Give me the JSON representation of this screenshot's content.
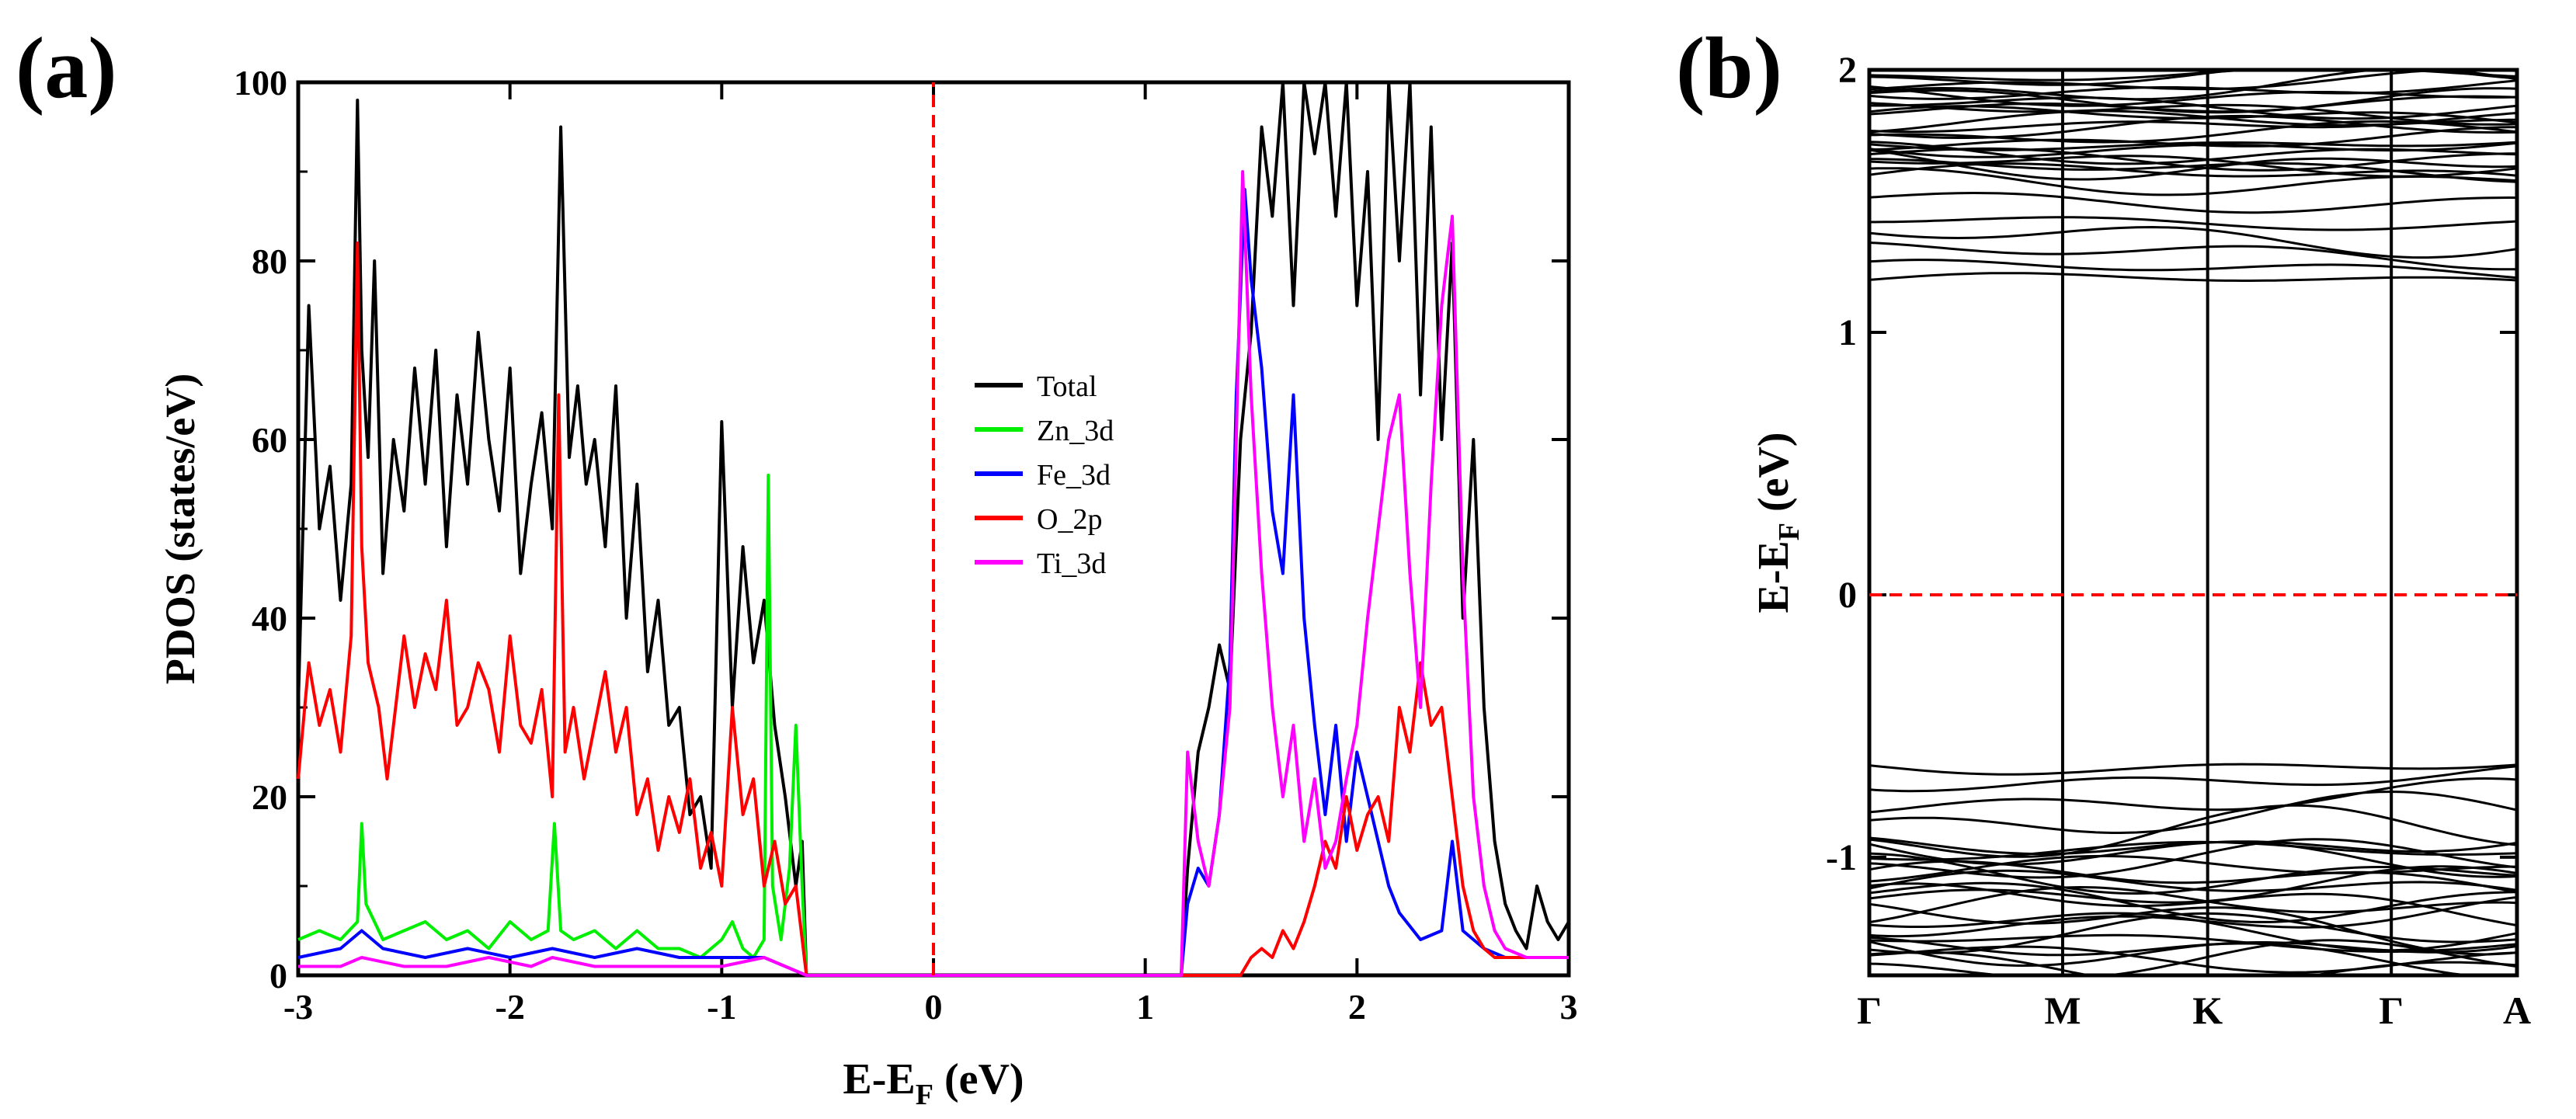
{
  "chart_data": [
    {
      "panel_label": "(a)",
      "type": "line",
      "xlabel_main": "E-E",
      "xlabel_sub": "F",
      "xlabel_unit": " (eV)",
      "ylabel": "PDOS (states/eV)",
      "xlim": [
        -3,
        3
      ],
      "ylim": [
        0,
        100
      ],
      "xticks": [
        -3,
        -2,
        -1,
        0,
        1,
        2,
        3
      ],
      "yticks": [
        0,
        20,
        40,
        60,
        80,
        100
      ],
      "fermi_level": 0,
      "legend_position": "center",
      "series": [
        {
          "name": "Total",
          "color": "#000000",
          "x": [
            -3.0,
            -2.95,
            -2.9,
            -2.85,
            -2.8,
            -2.75,
            -2.72,
            -2.7,
            -2.67,
            -2.64,
            -2.6,
            -2.55,
            -2.5,
            -2.45,
            -2.4,
            -2.35,
            -2.3,
            -2.25,
            -2.2,
            -2.15,
            -2.1,
            -2.05,
            -2.0,
            -1.95,
            -1.9,
            -1.85,
            -1.8,
            -1.76,
            -1.72,
            -1.68,
            -1.64,
            -1.6,
            -1.55,
            -1.5,
            -1.45,
            -1.4,
            -1.35,
            -1.3,
            -1.25,
            -1.2,
            -1.15,
            -1.1,
            -1.05,
            -1.0,
            -0.95,
            -0.9,
            -0.85,
            -0.8,
            -0.75,
            -0.7,
            -0.65,
            -0.62,
            -0.6,
            1.17,
            1.2,
            1.25,
            1.3,
            1.35,
            1.4,
            1.45,
            1.5,
            1.55,
            1.6,
            1.65,
            1.7,
            1.75,
            1.8,
            1.85,
            1.9,
            1.95,
            2.0,
            2.05,
            2.1,
            2.15,
            2.2,
            2.25,
            2.3,
            2.35,
            2.4,
            2.45,
            2.5,
            2.55,
            2.6,
            2.65,
            2.7,
            2.75,
            2.8,
            2.85,
            2.9,
            2.95,
            3.0
          ],
          "y": [
            30,
            75,
            50,
            57,
            42,
            55,
            98,
            70,
            58,
            80,
            45,
            60,
            52,
            68,
            55,
            70,
            48,
            65,
            55,
            72,
            60,
            52,
            68,
            45,
            55,
            63,
            50,
            95,
            58,
            66,
            55,
            60,
            48,
            66,
            40,
            55,
            34,
            42,
            28,
            30,
            18,
            20,
            12,
            62,
            30,
            48,
            35,
            42,
            28,
            20,
            10,
            15,
            0,
            0,
            12,
            25,
            30,
            37,
            32,
            60,
            72,
            95,
            85,
            100,
            75,
            100,
            92,
            100,
            85,
            100,
            75,
            90,
            60,
            100,
            80,
            100,
            65,
            95,
            60,
            82,
            40,
            60,
            30,
            15,
            8,
            5,
            3,
            10,
            6,
            4,
            6
          ]
        },
        {
          "name": "Zn_3d",
          "color": "#00ee00",
          "x": [
            -3.0,
            -2.9,
            -2.8,
            -2.72,
            -2.7,
            -2.68,
            -2.6,
            -2.5,
            -2.4,
            -2.3,
            -2.2,
            -2.1,
            -2.0,
            -1.9,
            -1.82,
            -1.79,
            -1.76,
            -1.7,
            -1.6,
            -1.5,
            -1.4,
            -1.3,
            -1.2,
            -1.1,
            -1.0,
            -0.95,
            -0.9,
            -0.85,
            -0.8,
            -0.78,
            -0.76,
            -0.72,
            -0.68,
            -0.65,
            -0.62,
            -0.6
          ],
          "y": [
            4,
            5,
            4,
            6,
            17,
            8,
            4,
            5,
            6,
            4,
            5,
            3,
            6,
            4,
            5,
            17,
            5,
            4,
            5,
            3,
            5,
            3,
            3,
            2,
            4,
            6,
            3,
            2,
            4,
            56,
            10,
            4,
            12,
            28,
            10,
            0
          ]
        },
        {
          "name": "Fe_3d",
          "color": "#0000ff",
          "x": [
            -3.0,
            -2.8,
            -2.7,
            -2.6,
            -2.4,
            -2.2,
            -2.0,
            -1.8,
            -1.6,
            -1.4,
            -1.2,
            -1.0,
            -0.8,
            -0.6,
            1.17,
            1.2,
            1.25,
            1.3,
            1.35,
            1.4,
            1.43,
            1.47,
            1.5,
            1.55,
            1.6,
            1.65,
            1.7,
            1.75,
            1.8,
            1.85,
            1.9,
            1.95,
            2.0,
            2.05,
            2.1,
            2.15,
            2.2,
            2.3,
            2.4,
            2.45,
            2.5,
            2.6,
            2.7,
            2.8,
            2.9,
            3.0
          ],
          "y": [
            2,
            3,
            5,
            3,
            2,
            3,
            2,
            3,
            2,
            3,
            2,
            2,
            2,
            0,
            0,
            8,
            12,
            10,
            18,
            35,
            65,
            88,
            78,
            68,
            52,
            45,
            65,
            40,
            28,
            18,
            28,
            15,
            25,
            20,
            15,
            10,
            7,
            4,
            5,
            15,
            5,
            3,
            2,
            2,
            2,
            2
          ]
        },
        {
          "name": "O_2p",
          "color": "#ff0000",
          "x": [
            -3.0,
            -2.95,
            -2.9,
            -2.85,
            -2.8,
            -2.75,
            -2.72,
            -2.7,
            -2.67,
            -2.62,
            -2.58,
            -2.5,
            -2.45,
            -2.4,
            -2.35,
            -2.3,
            -2.25,
            -2.2,
            -2.15,
            -2.1,
            -2.05,
            -2.0,
            -1.95,
            -1.9,
            -1.85,
            -1.8,
            -1.77,
            -1.74,
            -1.7,
            -1.65,
            -1.6,
            -1.55,
            -1.5,
            -1.45,
            -1.4,
            -1.35,
            -1.3,
            -1.25,
            -1.2,
            -1.15,
            -1.1,
            -1.05,
            -1.0,
            -0.95,
            -0.9,
            -0.85,
            -0.8,
            -0.75,
            -0.7,
            -0.65,
            -0.6,
            1.45,
            1.5,
            1.55,
            1.6,
            1.65,
            1.7,
            1.75,
            1.8,
            1.85,
            1.9,
            1.95,
            2.0,
            2.05,
            2.1,
            2.15,
            2.2,
            2.25,
            2.3,
            2.35,
            2.4,
            2.45,
            2.5,
            2.55,
            2.6,
            2.65,
            2.7,
            2.8,
            2.9,
            3.0
          ],
          "y": [
            22,
            35,
            28,
            32,
            25,
            38,
            82,
            48,
            35,
            30,
            22,
            38,
            30,
            36,
            32,
            42,
            28,
            30,
            35,
            32,
            25,
            38,
            28,
            26,
            32,
            20,
            65,
            25,
            30,
            22,
            28,
            34,
            25,
            30,
            18,
            22,
            14,
            20,
            16,
            22,
            12,
            16,
            10,
            30,
            18,
            22,
            10,
            15,
            8,
            10,
            0,
            0,
            2,
            3,
            2,
            5,
            3,
            6,
            10,
            15,
            12,
            20,
            14,
            18,
            20,
            15,
            30,
            25,
            35,
            28,
            30,
            20,
            10,
            5,
            3,
            2,
            2,
            2,
            2,
            2
          ]
        },
        {
          "name": "Ti_3d",
          "color": "#ff00ff",
          "x": [
            -3.0,
            -2.8,
            -2.7,
            -2.5,
            -2.3,
            -2.1,
            -1.9,
            -1.8,
            -1.6,
            -1.4,
            -1.2,
            -1.0,
            -0.8,
            -0.6,
            1.17,
            1.2,
            1.25,
            1.3,
            1.35,
            1.4,
            1.43,
            1.46,
            1.5,
            1.55,
            1.6,
            1.65,
            1.7,
            1.75,
            1.8,
            1.85,
            1.9,
            1.95,
            2.0,
            2.05,
            2.1,
            2.15,
            2.2,
            2.25,
            2.3,
            2.35,
            2.4,
            2.45,
            2.5,
            2.55,
            2.6,
            2.65,
            2.7,
            2.8,
            2.9,
            3.0
          ],
          "y": [
            1,
            1,
            2,
            1,
            1,
            2,
            1,
            2,
            1,
            1,
            1,
            1,
            2,
            0,
            0,
            25,
            15,
            10,
            18,
            30,
            60,
            90,
            65,
            45,
            30,
            20,
            28,
            15,
            22,
            12,
            15,
            22,
            28,
            40,
            50,
            60,
            65,
            45,
            30,
            55,
            75,
            85,
            45,
            20,
            10,
            5,
            3,
            2,
            2,
            2
          ]
        }
      ]
    },
    {
      "panel_label": "(b)",
      "type": "line",
      "ylabel_main": "E-E",
      "ylabel_sub": "F",
      "ylabel_unit": " (eV)",
      "ylim": [
        -1.45,
        2
      ],
      "yticks": [
        -1,
        0,
        1,
        2
      ],
      "kpoints": [
        "Γ",
        "M",
        "K",
        "Γ",
        "A"
      ],
      "kpoint_x": [
        0,
        1,
        1.75,
        2.7,
        3.35
      ],
      "fermi_level": 0,
      "conduction_bands_eV": [
        1.2,
        1.24,
        1.3,
        1.36,
        1.42,
        1.5,
        1.58,
        1.65,
        1.72,
        1.8,
        1.87,
        1.93,
        1.98
      ],
      "valence_bands_eV": [
        -0.65,
        -0.7,
        -0.78,
        -0.85,
        -0.92,
        -0.98,
        -1.05,
        -1.12,
        -1.18,
        -1.25,
        -1.32,
        -1.38,
        -1.42
      ]
    }
  ]
}
